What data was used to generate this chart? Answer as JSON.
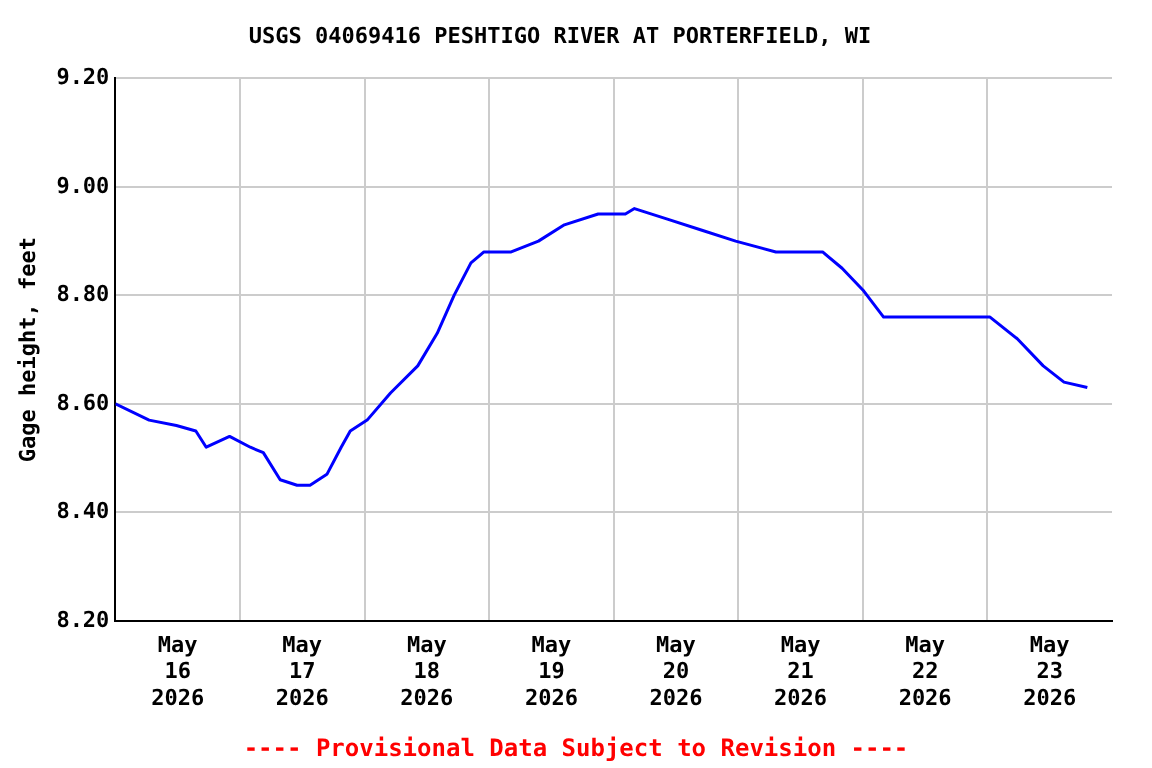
{
  "chart_data": {
    "type": "line",
    "title": "USGS 04069416 PESHTIGO RIVER AT PORTERFIELD, WI",
    "ylabel": "Gage height, feet",
    "annotations": [
      "---- Provisional Data Subject to Revision ----"
    ],
    "x": [
      "2026-05-16T00:00",
      "2026-05-16T06:30",
      "2026-05-16T11:45",
      "2026-05-16T15:30",
      "2026-05-16T17:30",
      "2026-05-16T22:00",
      "2026-05-17T02:00",
      "2026-05-17T04:30",
      "2026-05-17T07:45",
      "2026-05-17T11:00",
      "2026-05-17T13:30",
      "2026-05-17T16:45",
      "2026-05-17T19:30",
      "2026-05-17T21:15",
      "2026-05-18T00:30",
      "2026-05-18T05:00",
      "2026-05-18T10:15",
      "2026-05-18T14:00",
      "2026-05-18T17:15",
      "2026-05-18T20:30",
      "2026-05-18T23:00",
      "2026-05-19T04:15",
      "2026-05-19T09:30",
      "2026-05-19T14:30",
      "2026-05-19T21:00",
      "2026-05-20T02:15",
      "2026-05-20T04:00",
      "2026-05-20T10:30",
      "2026-05-20T17:00",
      "2026-05-20T23:30",
      "2026-05-21T07:15",
      "2026-05-21T12:30",
      "2026-05-21T16:15",
      "2026-05-21T20:00",
      "2026-05-22T00:00",
      "2026-05-22T04:00",
      "2026-05-22T10:15",
      "2026-05-22T18:00",
      "2026-05-23T00:30",
      "2026-05-23T05:45",
      "2026-05-23T10:45",
      "2026-05-23T14:45",
      "2026-05-23T19:15"
    ],
    "series": [
      {
        "color": "#0000ff",
        "values": [
          8.6,
          8.57,
          8.56,
          8.55,
          8.52,
          8.54,
          8.52,
          8.51,
          8.46,
          8.45,
          8.45,
          8.47,
          8.52,
          8.55,
          8.57,
          8.62,
          8.67,
          8.73,
          8.8,
          8.86,
          8.88,
          8.88,
          8.9,
          8.93,
          8.95,
          8.95,
          8.96,
          8.94,
          8.92,
          8.9,
          8.88,
          8.88,
          8.88,
          8.85,
          8.81,
          8.76,
          8.76,
          8.76,
          8.76,
          8.72,
          8.67,
          8.64,
          8.63
        ]
      }
    ],
    "xlim": [
      "2026-05-16T00:00",
      "2026-05-24T00:00"
    ],
    "xticks": [
      {
        "value": "2026-05-16T12:00",
        "label": "May\n16\n2026"
      },
      {
        "value": "2026-05-17T00:00",
        "label": null
      },
      {
        "value": "2026-05-17T12:00",
        "label": "May\n17\n2026"
      },
      {
        "value": "2026-05-18T00:00",
        "label": null
      },
      {
        "value": "2026-05-18T12:00",
        "label": "May\n18\n2026"
      },
      {
        "value": "2026-05-19T00:00",
        "label": null
      },
      {
        "value": "2026-05-19T12:00",
        "label": "May\n19\n2026"
      },
      {
        "value": "2026-05-20T00:00",
        "label": null
      },
      {
        "value": "2026-05-20T12:00",
        "label": "May\n20\n2026"
      },
      {
        "value": "2026-05-21T00:00",
        "label": null
      },
      {
        "value": "2026-05-21T12:00",
        "label": "May\n21\n2026"
      },
      {
        "value": "2026-05-22T00:00",
        "label": null
      },
      {
        "value": "2026-05-22T12:00",
        "label": "May\n22\n2026"
      },
      {
        "value": "2026-05-23T00:00",
        "label": null
      },
      {
        "value": "2026-05-23T12:00",
        "label": "May\n23\n2026"
      }
    ],
    "ylim": [
      8.2,
      9.2
    ],
    "yticks": [
      {
        "value": 8.2,
        "label": "8.20"
      },
      {
        "value": 8.4,
        "label": "8.40"
      },
      {
        "value": 8.6,
        "label": "8.60"
      },
      {
        "value": 8.8,
        "label": "8.80"
      },
      {
        "value": 9.0,
        "label": "9.00"
      },
      {
        "value": 9.2,
        "label": "9.20"
      }
    ],
    "grid": true,
    "legend": false,
    "marker": "none",
    "line_style": "solid"
  }
}
